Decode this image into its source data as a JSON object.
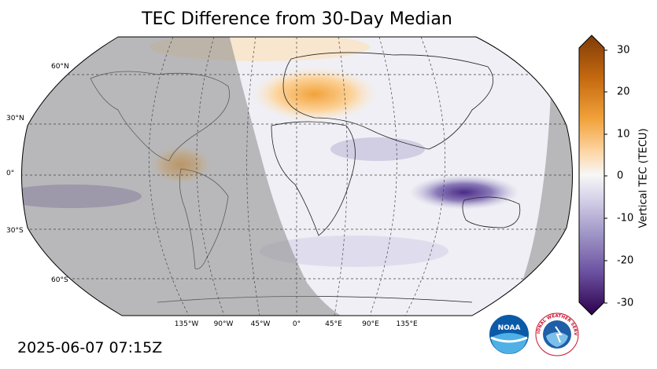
{
  "title": "TEC Difference from 30-Day Median",
  "timestamp": "2025-06-07 07:15Z",
  "map": {
    "projection": "Robinson",
    "lat_labels": [
      "60°N",
      "30°N",
      "0°",
      "30°S",
      "60°S"
    ],
    "lon_labels": [
      "135°W",
      "90°W",
      "45°W",
      "0°",
      "45°E",
      "90°E",
      "135°E"
    ],
    "night_shading": true,
    "gridlines": "dashed"
  },
  "colorbar": {
    "label": "Vertical TEC (TECU)",
    "ticks": [
      "30",
      "20",
      "10",
      "0",
      "-10",
      "-20",
      "-30"
    ],
    "range": [
      -30,
      30
    ],
    "colormap": "PuOr",
    "extend": "both",
    "colors": {
      "high": "#7f3b08",
      "mid": "#f7f7f7",
      "low": "#2d004b"
    }
  },
  "logos": {
    "noaa": "NOAA",
    "nws": "NATIONAL WEATHER SERVICE"
  }
}
